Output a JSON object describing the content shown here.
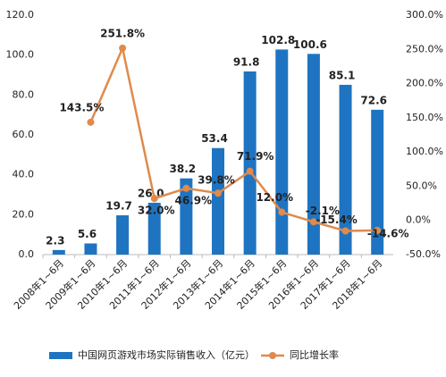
{
  "chart_data": {
    "type": "bar-line",
    "categories": [
      "2008年1~6月",
      "2009年1~6月",
      "2010年1~6月",
      "2011年1~6月",
      "2012年1~6月",
      "2013年1~6月",
      "2014年1~6月",
      "2015年1~6月",
      "2016年1~6月",
      "2017年1~6月",
      "2018年1~6月"
    ],
    "series": [
      {
        "name": "中国网页游戏市场实际销售收入（亿元）",
        "type": "bar",
        "color": "#1f74c2",
        "values": [
          2.3,
          5.6,
          19.7,
          26.0,
          38.2,
          53.4,
          91.8,
          102.8,
          100.6,
          85.1,
          72.6
        ],
        "value_labels": [
          "2.3",
          "5.6",
          "19.7",
          "26.0",
          "38.2",
          "53.4",
          "91.8",
          "102.8",
          "100.6",
          "85.1",
          "72.6"
        ]
      },
      {
        "name": "同比增长率",
        "type": "line",
        "axis": "y2",
        "color": "#e08a4c",
        "values": [
          null,
          143.5,
          251.8,
          32.0,
          46.9,
          39.8,
          71.9,
          12.0,
          -2.1,
          -15.4,
          -14.6
        ],
        "value_labels": [
          null,
          "143.5%",
          "251.8%",
          "32.0%",
          "46.9%",
          "39.8%",
          "71.9%",
          "12.0%",
          "-2.1%",
          "-15.4%",
          "-14.6%"
        ]
      }
    ],
    "ylim": [
      0,
      120
    ],
    "yticks": [
      {
        "value": 0,
        "label": "0.0"
      },
      {
        "value": 20,
        "label": "20.0"
      },
      {
        "value": 40,
        "label": "40.0"
      },
      {
        "value": 60,
        "label": "60.0"
      },
      {
        "value": 80,
        "label": "80.0"
      },
      {
        "value": 100,
        "label": "100.0"
      },
      {
        "value": 120,
        "label": "120.0"
      }
    ],
    "y2lim": [
      -50,
      300
    ],
    "y2ticks": [
      {
        "value": -50,
        "label": "-50.0%"
      },
      {
        "value": 0,
        "label": "0.0%"
      },
      {
        "value": 50,
        "label": "50.0%"
      },
      {
        "value": 100,
        "label": "100.0%"
      },
      {
        "value": 150,
        "label": "150.0%"
      },
      {
        "value": 200,
        "label": "200.0%"
      },
      {
        "value": 250,
        "label": "250.0%"
      },
      {
        "value": 300,
        "label": "300.0%"
      }
    ],
    "legend": "bottom"
  }
}
